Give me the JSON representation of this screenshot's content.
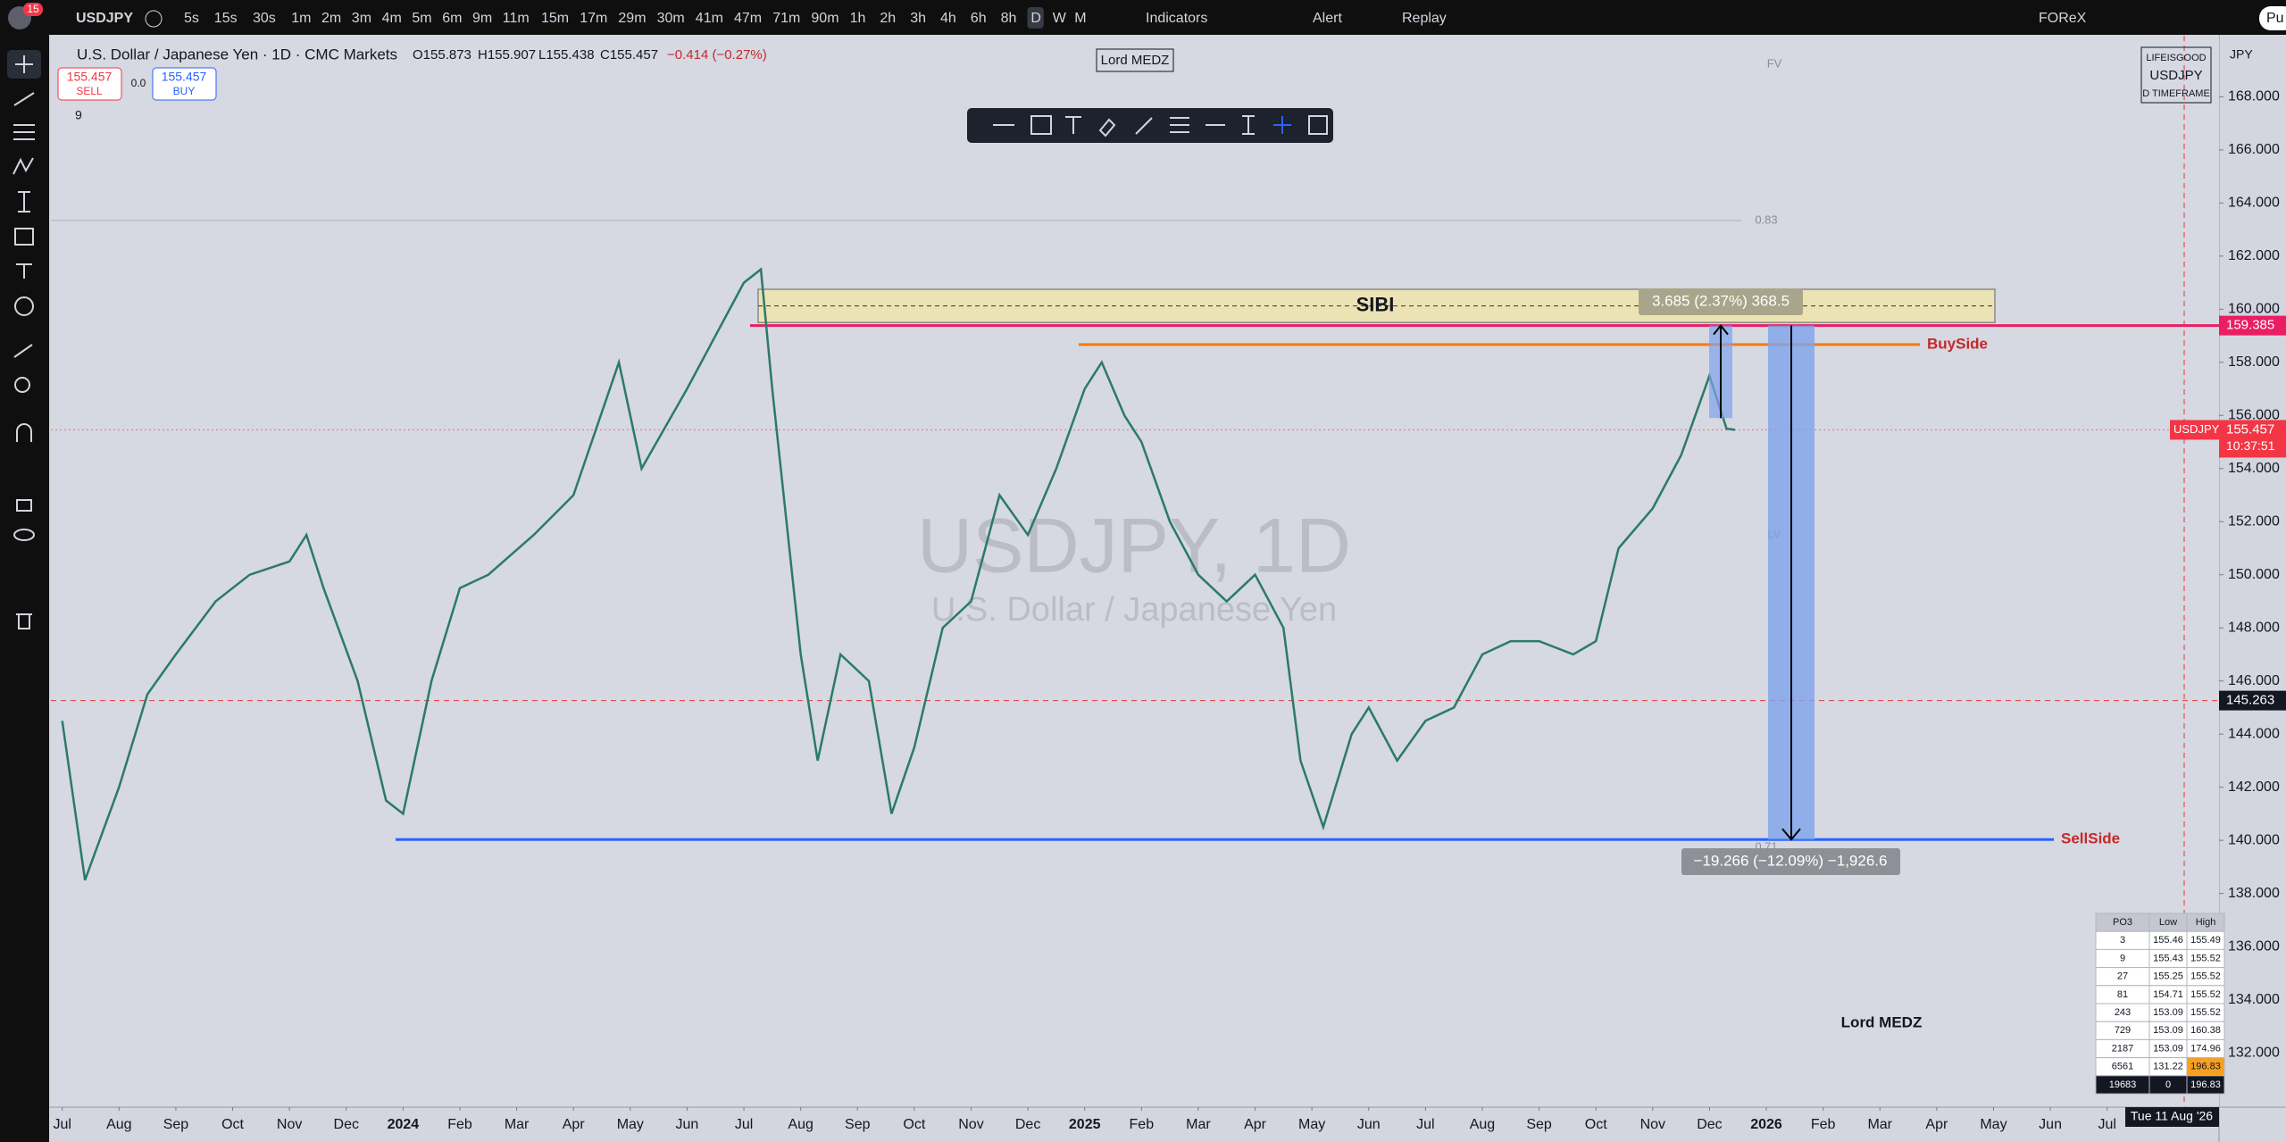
{
  "toolbar": {
    "badge": "15",
    "symbol": "USDJPY",
    "intervals": [
      "5s",
      "15s",
      "30s",
      "1m",
      "2m",
      "3m",
      "4m",
      "5m",
      "6m",
      "9m",
      "11m",
      "15m",
      "17m",
      "29m",
      "30m",
      "41m",
      "47m",
      "71m",
      "90m",
      "1h",
      "2h",
      "3h",
      "4h",
      "6h",
      "8h",
      "D",
      "W",
      "M"
    ],
    "indicators": "Indicators",
    "alert": "Alert",
    "replay": "Replay",
    "account": "FOReX",
    "publish": "Pu"
  },
  "legend": {
    "title": "U.S. Dollar / Japanese Yen · 1D · CMC Markets",
    "open": "O155.873",
    "high": "H155.907",
    "low": "L155.438",
    "close": "C155.457",
    "change": "−0.414 (−0.27%)",
    "sell_price": "155.457",
    "sell": "SELL",
    "spread": "0.0",
    "buy_price": "155.457",
    "buy": "BUY",
    "indicator_count": "9"
  },
  "watermark": {
    "symbol": "USDJPY, 1D",
    "description": "U.S. Dollar / Japanese Yen"
  },
  "signature_top": "Lord MEDZ",
  "signature_bottom": "Lord MEDZ",
  "info_box": [
    "LIFEISGOOD",
    "USDJPY",
    "D TIMEFRAME"
  ],
  "currency": "JPY",
  "cursor_date": "Tue 11 Aug '26",
  "chart_data": {
    "type": "line",
    "series": [
      {
        "name": "USDJPY",
        "color": "#2b7a68",
        "x": [
          0,
          0.4,
          1,
          1.5,
          2,
          2.7,
          3.3,
          4,
          4.3,
          4.6,
          5.2,
          5.7,
          6,
          6.5,
          7,
          7.5,
          8.3,
          9,
          9.8,
          10.2,
          11,
          12,
          12.3,
          12.5,
          13,
          13.3,
          13.7,
          14.2,
          14.6,
          15,
          15.5,
          16,
          16.5,
          17,
          17.5,
          18,
          18.3,
          18.7,
          19,
          19.5,
          20,
          20.5,
          21,
          21.5,
          21.8,
          22.2,
          22.7,
          23,
          23.5,
          24,
          24.5,
          25,
          25.5,
          26,
          26.6,
          27,
          27.4,
          28,
          28.5,
          29,
          29.3,
          29.45
        ],
        "values": [
          144.5,
          138.5,
          142,
          145.5,
          147,
          149,
          150,
          150.5,
          151.5,
          149.5,
          146,
          141.5,
          141,
          146,
          149.5,
          150,
          151.5,
          153,
          158,
          154,
          157,
          161,
          161.5,
          157,
          147,
          143,
          147,
          146,
          141,
          143.5,
          148,
          149,
          153,
          151.5,
          154,
          157,
          158,
          156,
          155,
          152,
          150,
          149,
          150,
          148,
          143,
          140.5,
          144,
          145,
          143,
          144.5,
          145,
          147,
          147.5,
          147.5,
          147,
          147.5,
          151,
          152.5,
          154.5,
          157.5,
          155.5,
          155.457
        ]
      }
    ],
    "last_price": 155.457,
    "countdown": "10:37:51",
    "crosshair_price": 145.263,
    "ylim": [
      129.95,
      170.3
    ],
    "yticks": [
      {
        "value": 132,
        "label": "132.000"
      },
      {
        "value": 134,
        "label": "134.000"
      },
      {
        "value": 136,
        "label": "136.000"
      },
      {
        "value": 138,
        "label": "138.000"
      },
      {
        "value": 140,
        "label": "140.000"
      },
      {
        "value": 142,
        "label": "142.000"
      },
      {
        "value": 144,
        "label": "144.000"
      },
      {
        "value": 146,
        "label": "146.000"
      },
      {
        "value": 148,
        "label": "148.000"
      },
      {
        "value": 150,
        "label": "150.000"
      },
      {
        "value": 152,
        "label": "152.000"
      },
      {
        "value": 154,
        "label": "154.000"
      },
      {
        "value": 156,
        "label": "156.000"
      },
      {
        "value": 158,
        "label": "158.000"
      },
      {
        "value": 160,
        "label": "160.000"
      },
      {
        "value": 162,
        "label": "162.000"
      },
      {
        "value": 164,
        "label": "164.000"
      },
      {
        "value": 166,
        "label": "166.000"
      },
      {
        "value": 168,
        "label": "168.000"
      }
    ],
    "xlim": [
      -0.2,
      37.97
    ],
    "xticks": [
      {
        "value": 0,
        "label": "Jul"
      },
      {
        "value": 1,
        "label": "Aug"
      },
      {
        "value": 2,
        "label": "Sep"
      },
      {
        "value": 3,
        "label": "Oct"
      },
      {
        "value": 4,
        "label": "Nov"
      },
      {
        "value": 5,
        "label": "Dec"
      },
      {
        "value": 6,
        "label": "2024"
      },
      {
        "value": 7,
        "label": "Feb"
      },
      {
        "value": 8,
        "label": "Mar"
      },
      {
        "value": 9,
        "label": "Apr"
      },
      {
        "value": 10,
        "label": "May"
      },
      {
        "value": 11,
        "label": "Jun"
      },
      {
        "value": 12,
        "label": "Jul"
      },
      {
        "value": 13,
        "label": "Aug"
      },
      {
        "value": 14,
        "label": "Sep"
      },
      {
        "value": 15,
        "label": "Oct"
      },
      {
        "value": 16,
        "label": "Nov"
      },
      {
        "value": 17,
        "label": "Dec"
      },
      {
        "value": 18,
        "label": "2025"
      },
      {
        "value": 19,
        "label": "Feb"
      },
      {
        "value": 20,
        "label": "Mar"
      },
      {
        "value": 21,
        "label": "Apr"
      },
      {
        "value": 22,
        "label": "May"
      },
      {
        "value": 23,
        "label": "Jun"
      },
      {
        "value": 24,
        "label": "Jul"
      },
      {
        "value": 25,
        "label": "Aug"
      },
      {
        "value": 26,
        "label": "Sep"
      },
      {
        "value": 27,
        "label": "Oct"
      },
      {
        "value": 28,
        "label": "Nov"
      },
      {
        "value": 29,
        "label": "Dec"
      },
      {
        "value": 30,
        "label": "2026"
      },
      {
        "value": 31,
        "label": "Feb"
      },
      {
        "value": 32,
        "label": "Mar"
      },
      {
        "value": 33,
        "label": "Apr"
      },
      {
        "value": 34,
        "label": "May"
      },
      {
        "value": 35,
        "label": "Jun"
      },
      {
        "value": 36,
        "label": "Jul"
      }
    ],
    "zone": {
      "label": "SIBI",
      "top": 160.75,
      "bottom": 159.5
    },
    "liquidity_line": 159.385,
    "levels": [
      {
        "name": "BuySide",
        "value": 158.67,
        "color": "#f57c00",
        "text_color": "#c62828"
      },
      {
        "name": "SellSide",
        "value": 140.03,
        "color": "#2962ff",
        "text_color": "#c62828"
      }
    ],
    "measures": [
      "3.685 (2.37%) 368.5",
      "−19.266 (−12.09%) −1,926.6"
    ],
    "fib_labels": [
      "FV",
      "0.83",
      "LV",
      "0.71"
    ]
  },
  "po3_table": {
    "header": [
      "PO3",
      "Low",
      "High"
    ],
    "rows": [
      [
        "3",
        "155.46",
        "155.49"
      ],
      [
        "9",
        "155.43",
        "155.52"
      ],
      [
        "27",
        "155.25",
        "155.52"
      ],
      [
        "81",
        "154.71",
        "155.52"
      ],
      [
        "243",
        "153.09",
        "155.52"
      ],
      [
        "729",
        "153.09",
        "160.38"
      ],
      [
        "2187",
        "153.09",
        "174.96"
      ],
      [
        "6561",
        "131.22",
        "196.83"
      ],
      [
        "19683",
        "0",
        "196.83"
      ]
    ]
  }
}
